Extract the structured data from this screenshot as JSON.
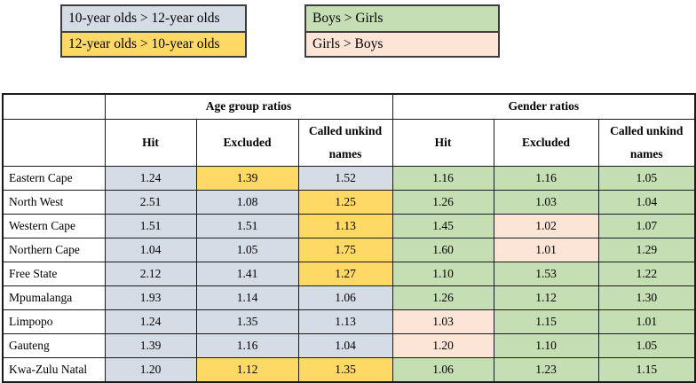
{
  "palette": {
    "ten_gt_twelve": "#d6dce5",
    "twelve_gt_ten": "#ffd966",
    "boys_gt_girls": "#c6deb3",
    "girls_gt_boys": "#fce4d6"
  },
  "legend": {
    "age_box": {
      "items": [
        {
          "label": "10-year olds > 12-year olds",
          "key": "ten_gt_twelve"
        },
        {
          "label": "12-year olds > 10-year olds",
          "key": "twelve_gt_ten"
        }
      ]
    },
    "gender_box": {
      "items": [
        {
          "label": "Boys > Girls",
          "key": "boys_gt_girls"
        },
        {
          "label": "Girls > Boys",
          "key": "girls_gt_boys"
        }
      ]
    }
  },
  "table": {
    "group_headers": [
      "Age group ratios",
      "Gender ratios"
    ],
    "sub_headers": [
      "Hit",
      "Excluded",
      "Called unkind names",
      "Hit",
      "Excluded",
      "Called unkind names"
    ],
    "rows": [
      {
        "province": "Eastern Cape",
        "cells": [
          {
            "value": "1.24",
            "key": "ten_gt_twelve"
          },
          {
            "value": "1.39",
            "key": "twelve_gt_ten"
          },
          {
            "value": "1.52",
            "key": "ten_gt_twelve"
          },
          {
            "value": "1.16",
            "key": "boys_gt_girls"
          },
          {
            "value": "1.16",
            "key": "boys_gt_girls"
          },
          {
            "value": "1.05",
            "key": "boys_gt_girls"
          }
        ]
      },
      {
        "province": "North West",
        "cells": [
          {
            "value": "2.51",
            "key": "ten_gt_twelve"
          },
          {
            "value": "1.08",
            "key": "ten_gt_twelve"
          },
          {
            "value": "1.25",
            "key": "twelve_gt_ten"
          },
          {
            "value": "1.26",
            "key": "boys_gt_girls"
          },
          {
            "value": "1.03",
            "key": "boys_gt_girls"
          },
          {
            "value": "1.04",
            "key": "boys_gt_girls"
          }
        ]
      },
      {
        "province": "Western Cape",
        "cells": [
          {
            "value": "1.51",
            "key": "ten_gt_twelve"
          },
          {
            "value": "1.51",
            "key": "ten_gt_twelve"
          },
          {
            "value": "1.13",
            "key": "twelve_gt_ten"
          },
          {
            "value": "1.45",
            "key": "boys_gt_girls"
          },
          {
            "value": "1.02",
            "key": "girls_gt_boys"
          },
          {
            "value": "1.07",
            "key": "boys_gt_girls"
          }
        ]
      },
      {
        "province": "Northern Cape",
        "cells": [
          {
            "value": "1.04",
            "key": "ten_gt_twelve"
          },
          {
            "value": "1.05",
            "key": "ten_gt_twelve"
          },
          {
            "value": "1.75",
            "key": "twelve_gt_ten"
          },
          {
            "value": "1.60",
            "key": "boys_gt_girls"
          },
          {
            "value": "1.01",
            "key": "girls_gt_boys"
          },
          {
            "value": "1.29",
            "key": "boys_gt_girls"
          }
        ]
      },
      {
        "province": "Free State",
        "cells": [
          {
            "value": "2.12",
            "key": "ten_gt_twelve"
          },
          {
            "value": "1.41",
            "key": "ten_gt_twelve"
          },
          {
            "value": "1.27",
            "key": "twelve_gt_ten"
          },
          {
            "value": "1.10",
            "key": "boys_gt_girls"
          },
          {
            "value": "1.53",
            "key": "boys_gt_girls"
          },
          {
            "value": "1.22",
            "key": "boys_gt_girls"
          }
        ]
      },
      {
        "province": "Mpumalanga",
        "cells": [
          {
            "value": "1.93",
            "key": "ten_gt_twelve"
          },
          {
            "value": "1.14",
            "key": "ten_gt_twelve"
          },
          {
            "value": "1.06",
            "key": "ten_gt_twelve"
          },
          {
            "value": "1.26",
            "key": "boys_gt_girls"
          },
          {
            "value": "1.12",
            "key": "boys_gt_girls"
          },
          {
            "value": "1.30",
            "key": "boys_gt_girls"
          }
        ]
      },
      {
        "province": "Limpopo",
        "cells": [
          {
            "value": "1.24",
            "key": "ten_gt_twelve"
          },
          {
            "value": "1.35",
            "key": "ten_gt_twelve"
          },
          {
            "value": "1.13",
            "key": "ten_gt_twelve"
          },
          {
            "value": "1.03",
            "key": "girls_gt_boys"
          },
          {
            "value": "1.15",
            "key": "boys_gt_girls"
          },
          {
            "value": "1.01",
            "key": "boys_gt_girls"
          }
        ]
      },
      {
        "province": "Gauteng",
        "cells": [
          {
            "value": "1.39",
            "key": "ten_gt_twelve"
          },
          {
            "value": "1.16",
            "key": "ten_gt_twelve"
          },
          {
            "value": "1.04",
            "key": "ten_gt_twelve"
          },
          {
            "value": "1.20",
            "key": "girls_gt_boys"
          },
          {
            "value": "1.10",
            "key": "boys_gt_girls"
          },
          {
            "value": "1.05",
            "key": "boys_gt_girls"
          }
        ]
      },
      {
        "province": "Kwa-Zulu Natal",
        "cells": [
          {
            "value": "1.20",
            "key": "ten_gt_twelve"
          },
          {
            "value": "1.12",
            "key": "twelve_gt_ten"
          },
          {
            "value": "1.35",
            "key": "twelve_gt_ten"
          },
          {
            "value": "1.06",
            "key": "boys_gt_girls"
          },
          {
            "value": "1.23",
            "key": "boys_gt_girls"
          },
          {
            "value": "1.15",
            "key": "boys_gt_girls"
          }
        ]
      }
    ]
  }
}
